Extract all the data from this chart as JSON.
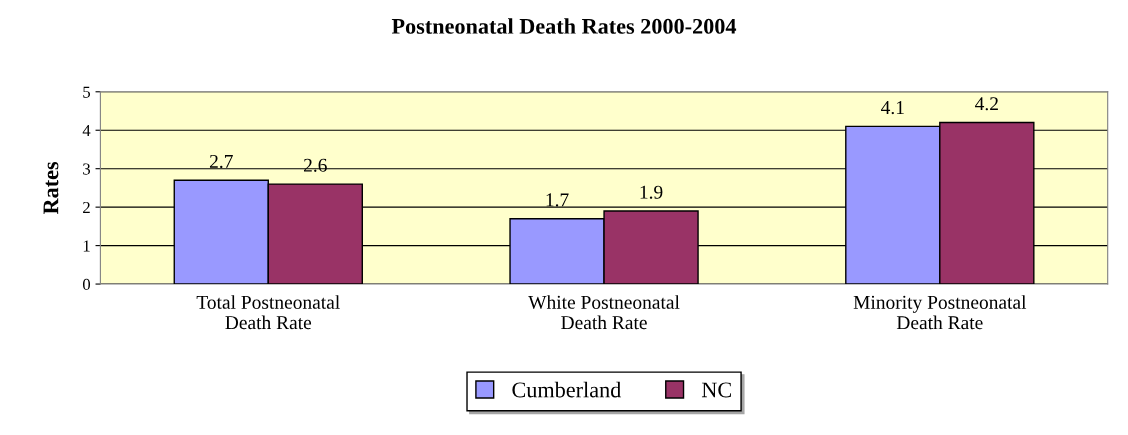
{
  "chart_data": {
    "type": "bar",
    "title": "Postneonatal Death Rates 2000-2004",
    "ylabel": "Rates",
    "categories": [
      "Total Postneonatal\nDeath Rate",
      "White Postneonatal\nDeath Rate",
      "Minority Postneonatal\nDeath Rate"
    ],
    "series": [
      {
        "name": "Cumberland",
        "color": "#9999ff",
        "values": [
          2.7,
          1.7,
          4.1
        ]
      },
      {
        "name": "NC",
        "color": "#993366",
        "values": [
          2.6,
          1.9,
          4.2
        ]
      }
    ],
    "ylim": [
      0,
      5
    ],
    "yticks": [
      0,
      1,
      2,
      3,
      4,
      5
    ],
    "grid": "y",
    "legend": "bottom",
    "data_labels": true
  }
}
